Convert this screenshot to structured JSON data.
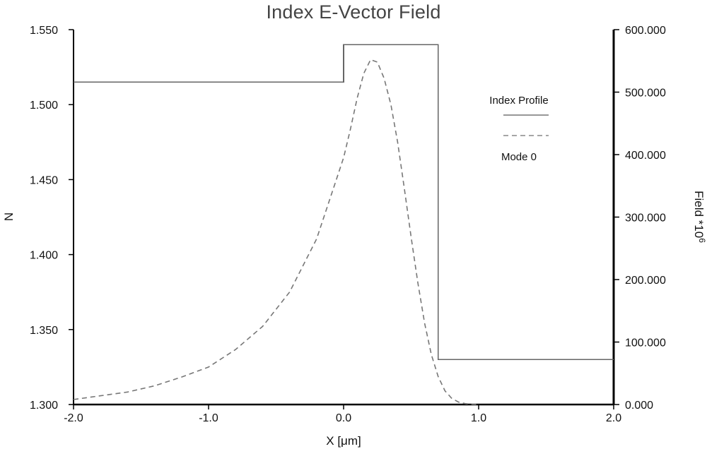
{
  "chart_data": {
    "type": "line",
    "title": "Index E-Vector Field",
    "xlabel": "X [μm]",
    "ylabel_left": "N",
    "ylabel_right": "Field *10",
    "ylabel_right_superscript": "6",
    "xlim": [
      -2.0,
      2.0
    ],
    "ylim_left": [
      1.3,
      1.55
    ],
    "ylim_right": [
      0,
      600
    ],
    "x_ticks": [
      "-2.0",
      "-1.0",
      "0.0",
      "1.0",
      "2.0"
    ],
    "y_left_ticks": [
      "1.300",
      "1.350",
      "1.400",
      "1.450",
      "1.500",
      "1.550"
    ],
    "y_right_ticks": [
      "0.000",
      "100.000",
      "200.000",
      "300.000",
      "400.000",
      "500.000",
      "600.000"
    ],
    "legend": {
      "position": "top-right",
      "entries": [
        "Index Profile",
        "Mode 0"
      ]
    },
    "grid": false,
    "series": [
      {
        "name": "Index Profile",
        "axis": "left",
        "style": "solid",
        "color": "#666666",
        "x": [
          -2.0,
          0.0,
          0.0,
          0.7,
          0.7,
          2.0
        ],
        "y": [
          1.515,
          1.515,
          1.54,
          1.54,
          1.33,
          1.33
        ]
      },
      {
        "name": "Mode 0",
        "axis": "right",
        "style": "dashed",
        "color": "#777777",
        "x": [
          -2.0,
          -1.8,
          -1.6,
          -1.4,
          -1.2,
          -1.0,
          -0.8,
          -0.6,
          -0.4,
          -0.2,
          0.0,
          0.05,
          0.1,
          0.15,
          0.2,
          0.25,
          0.3,
          0.35,
          0.4,
          0.45,
          0.5,
          0.55,
          0.6,
          0.65,
          0.7,
          0.75,
          0.8,
          0.85,
          0.9,
          0.95,
          1.0
        ],
        "y": [
          8,
          14,
          20,
          30,
          44,
          60,
          88,
          125,
          180,
          265,
          395,
          440,
          490,
          530,
          552,
          548,
          522,
          480,
          420,
          345,
          268,
          195,
          130,
          80,
          45,
          22,
          10,
          4,
          1.5,
          0.5,
          0
        ]
      }
    ]
  }
}
